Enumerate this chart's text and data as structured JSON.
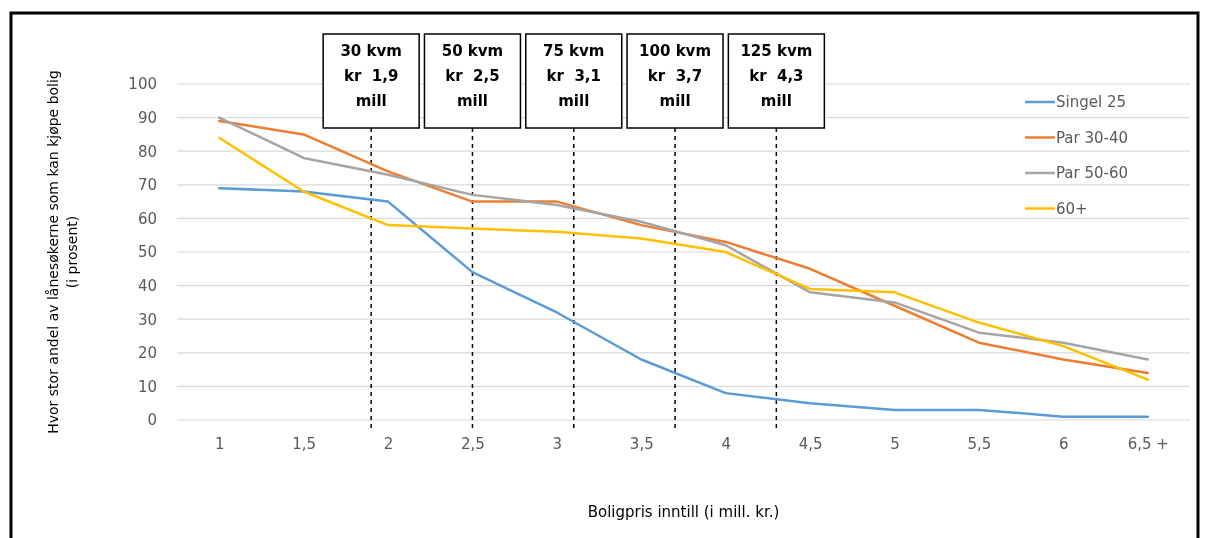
{
  "chart_data": {
    "type": "line",
    "xlabel": "Boligpris inntill  (i mill. kr.)",
    "ylabel": "Hvor stor andel av lånesøkerne som kan kjøpe bolig\n(i prosent)",
    "x": [
      1,
      1.5,
      2,
      2.5,
      3,
      3.5,
      4,
      4.5,
      5,
      5.5,
      6,
      6.5
    ],
    "xlim": [
      0.75,
      6.75
    ],
    "xticks": [
      {
        "value": 1,
        "label": "1"
      },
      {
        "value": 1.5,
        "label": "1,5"
      },
      {
        "value": 2,
        "label": "2"
      },
      {
        "value": 2.5,
        "label": "2,5"
      },
      {
        "value": 3,
        "label": "3"
      },
      {
        "value": 3.5,
        "label": "3,5"
      },
      {
        "value": 4,
        "label": "4"
      },
      {
        "value": 4.5,
        "label": "4,5"
      },
      {
        "value": 5,
        "label": "5"
      },
      {
        "value": 5.5,
        "label": "5,5"
      },
      {
        "value": 6,
        "label": "6"
      },
      {
        "value": 6.5,
        "label": "6,5 +"
      }
    ],
    "ylim": [
      0,
      100
    ],
    "yticks": [
      0,
      10,
      20,
      30,
      40,
      50,
      60,
      70,
      80,
      90,
      100
    ],
    "grid": "y",
    "legend": "right",
    "marker": "none",
    "line_style": "solid",
    "series": [
      {
        "name": "Singel 25",
        "color": "#5b9bd5",
        "values": [
          69,
          68,
          65,
          44,
          32,
          18,
          8,
          5,
          3,
          3,
          1,
          1
        ]
      },
      {
        "name": "Par 30-40",
        "color": "#ed7d31",
        "values": [
          89,
          85,
          74,
          65,
          65,
          58,
          53,
          45,
          34,
          23,
          18,
          14
        ]
      },
      {
        "name": "Par 50-60",
        "color": "#a5a5a5",
        "values": [
          90,
          78,
          73,
          67,
          64,
          59,
          52,
          38,
          35,
          26,
          23,
          18
        ]
      },
      {
        "name": "60+",
        "color": "#ffc000",
        "values": [
          84,
          68,
          58,
          57,
          56,
          54,
          50,
          39,
          38,
          29,
          22,
          12
        ]
      }
    ],
    "ref_lines": [
      {
        "axis": "x",
        "value": 1.9,
        "label": "30 kvm\nkr  1,9\nmill",
        "line_style": "dashed"
      },
      {
        "axis": "x",
        "value": 2.5,
        "label": "50 kvm\nkr  2,5\nmill",
        "line_style": "dashed"
      },
      {
        "axis": "x",
        "value": 3.1,
        "label": "75 kvm\nkr  3,1\nmill",
        "line_style": "dashed"
      },
      {
        "axis": "x",
        "value": 3.7,
        "label": "100 kvm\nkr  3,7\nmill",
        "line_style": "dashed"
      },
      {
        "axis": "x",
        "value": 4.3,
        "label": "125 kvm\nkr  4,3\nmill",
        "line_style": "dashed"
      }
    ]
  }
}
